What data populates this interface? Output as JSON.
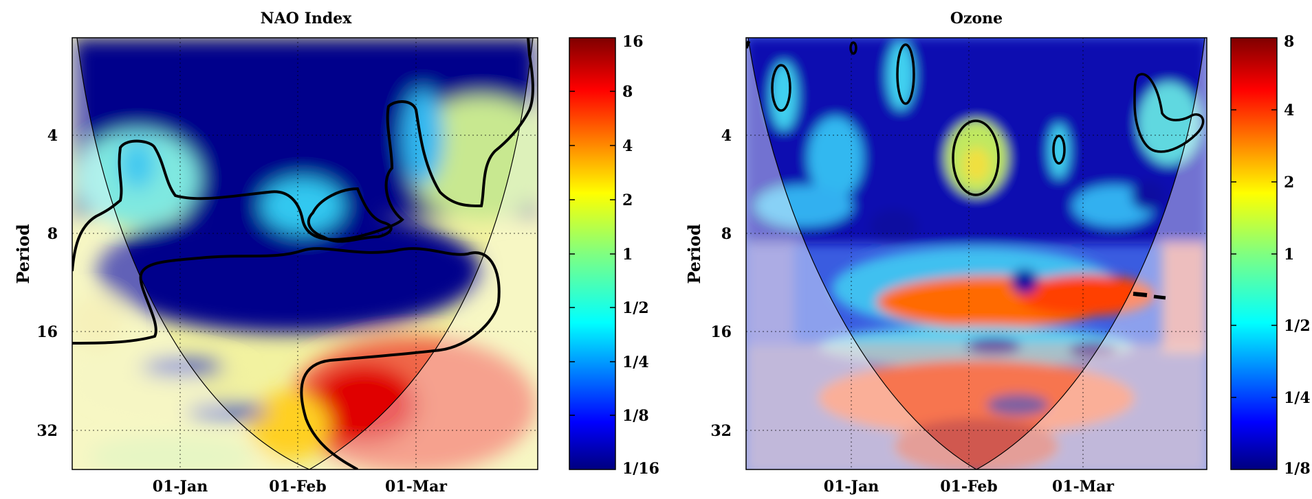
{
  "chart_data": [
    {
      "type": "heatmap",
      "title": "NAO Index",
      "ylabel": "Period",
      "xlabel": "",
      "x_ticks": [
        "01-Jan",
        "01-Feb",
        "01-Mar"
      ],
      "y_ticks": [
        "4",
        "8",
        "16",
        "32"
      ],
      "y_scale": "log2",
      "ylim": [
        2,
        45
      ],
      "colorbar": {
        "ticks": [
          "16",
          "8",
          "4",
          "2",
          "1",
          "1/2",
          "1/4",
          "1/8",
          "1/16"
        ],
        "range": [
          "1/16",
          "16"
        ],
        "colormap": "jet"
      },
      "significance_contours": true,
      "cone_of_influence": true,
      "grid": true
    },
    {
      "type": "heatmap",
      "title": "Ozone",
      "ylabel": "Period",
      "xlabel": "",
      "x_ticks": [
        "01-Jan",
        "01-Feb",
        "01-Mar"
      ],
      "y_ticks": [
        "4",
        "8",
        "16",
        "32"
      ],
      "y_scale": "log2",
      "ylim": [
        2,
        45
      ],
      "colorbar": {
        "ticks": [
          "8",
          "4",
          "2",
          "1",
          "1/2",
          "1/4",
          "1/8"
        ],
        "range": [
          "1/8",
          "8"
        ],
        "colormap": "jet"
      },
      "significance_contours": true,
      "cone_of_influence": true,
      "grid": true
    }
  ],
  "colors": {
    "deep_blue": "#00008b",
    "cyan": "#33ccff",
    "yellow": "#ffe040",
    "red": "#ff2000",
    "dark_red": "#800000",
    "coi_shade": "#ffffff"
  }
}
